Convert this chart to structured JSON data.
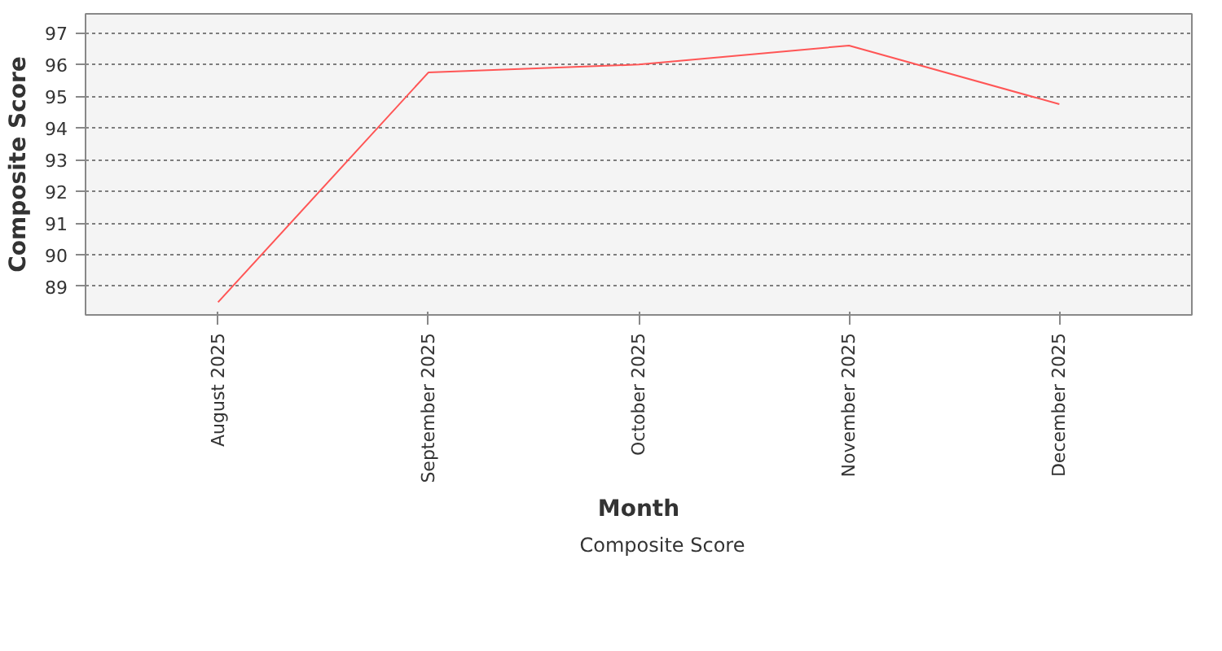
{
  "chart_data": {
    "type": "line",
    "xlabel": "Month",
    "ylabel": "Composite Score",
    "categories": [
      "August 2025",
      "September 2025",
      "October 2025",
      "November 2025",
      "December 2025"
    ],
    "series": [
      {
        "name": "Composite Score",
        "color": "#ff5555",
        "values": [
          88.5,
          95.75,
          96.0,
          96.6,
          94.75
        ]
      }
    ],
    "ylim": [
      88.1,
      97.6
    ],
    "yticks": [
      89,
      90,
      91,
      92,
      93,
      94,
      95,
      96,
      97
    ],
    "grid": "y",
    "legend": "bottom",
    "marker": "none",
    "line_style": "solid"
  }
}
